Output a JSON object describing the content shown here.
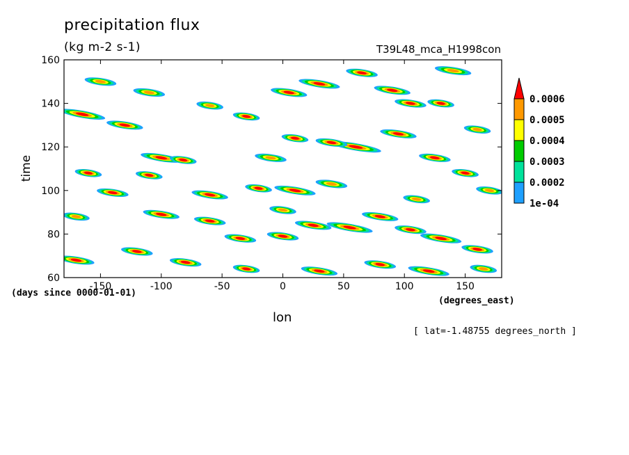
{
  "header": {
    "title": "precipitation flux",
    "units": "(kg m-2 s-1)",
    "run_name": "T39L48_mca_H1998con"
  },
  "footer": {
    "y_units": "(days since 0000-01-01)",
    "x_units": "(degrees_east)",
    "lat_note": "[ lat=-1.48755 degrees_north ]"
  },
  "chart_data": {
    "type": "heatmap",
    "title": "precipitation flux",
    "xlabel": "lon",
    "ylabel": "time",
    "xlim": [
      -180,
      180
    ],
    "ylim": [
      60,
      160
    ],
    "x_ticks": [
      -150,
      -100,
      -50,
      0,
      50,
      100,
      150
    ],
    "y_ticks": [
      60,
      80,
      100,
      120,
      140,
      160
    ],
    "grid": false,
    "colorbar": {
      "placement": "right",
      "levels": [
        0.0001,
        0.0002,
        0.0003,
        0.0004,
        0.0005,
        0.0006
      ],
      "labels": [
        "1e-04",
        "0.0002",
        "0.0003",
        "0.0004",
        "0.0005",
        "0.0006"
      ],
      "colors": [
        "#1ea0ff",
        "#00e29b",
        "#00cc00",
        "#ffff00",
        "#ff9900",
        "#ff0000"
      ]
    },
    "features": [
      {
        "lon": -165,
        "time": 135,
        "len": 18,
        "slope": -0.18,
        "peak": 0.0006
      },
      {
        "lon": -130,
        "time": 130,
        "len": 14,
        "slope": -0.15,
        "peak": 0.0006
      },
      {
        "lon": -100,
        "time": 115,
        "len": 16,
        "slope": -0.16,
        "peak": 0.0006
      },
      {
        "lon": -82,
        "time": 114,
        "len": 10,
        "slope": -0.14,
        "peak": 0.0006
      },
      {
        "lon": -110,
        "time": 107,
        "len": 10,
        "slope": -0.14,
        "peak": 0.0006
      },
      {
        "lon": -60,
        "time": 98,
        "len": 14,
        "slope": -0.15,
        "peak": 0.0006
      },
      {
        "lon": -20,
        "time": 101,
        "len": 10,
        "slope": -0.14,
        "peak": 0.0006
      },
      {
        "lon": 10,
        "time": 100,
        "len": 16,
        "slope": -0.16,
        "peak": 0.0006
      },
      {
        "lon": 40,
        "time": 103,
        "len": 12,
        "slope": -0.14,
        "peak": 0.0005
      },
      {
        "lon": 60,
        "time": 120,
        "len": 20,
        "slope": -0.17,
        "peak": 0.0006
      },
      {
        "lon": 40,
        "time": 122,
        "len": 12,
        "slope": -0.14,
        "peak": 0.0006
      },
      {
        "lon": 10,
        "time": 124,
        "len": 10,
        "slope": -0.14,
        "peak": 0.0006
      },
      {
        "lon": 5,
        "time": 145,
        "len": 14,
        "slope": -0.15,
        "peak": 0.0006
      },
      {
        "lon": 30,
        "time": 149,
        "len": 16,
        "slope": -0.16,
        "peak": 0.0006
      },
      {
        "lon": 65,
        "time": 154,
        "len": 12,
        "slope": -0.14,
        "peak": 0.0006
      },
      {
        "lon": 90,
        "time": 146,
        "len": 14,
        "slope": -0.15,
        "peak": 0.0006
      },
      {
        "lon": 105,
        "time": 140,
        "len": 12,
        "slope": -0.14,
        "peak": 0.0006
      },
      {
        "lon": 130,
        "time": 140,
        "len": 10,
        "slope": -0.14,
        "peak": 0.0006
      },
      {
        "lon": 95,
        "time": 126,
        "len": 14,
        "slope": -0.15,
        "peak": 0.0006
      },
      {
        "lon": 125,
        "time": 115,
        "len": 12,
        "slope": -0.14,
        "peak": 0.0006
      },
      {
        "lon": 150,
        "time": 108,
        "len": 10,
        "slope": -0.14,
        "peak": 0.0006
      },
      {
        "lon": 170,
        "time": 100,
        "len": 10,
        "slope": -0.14,
        "peak": 0.0005
      },
      {
        "lon": -160,
        "time": 108,
        "len": 10,
        "slope": -0.14,
        "peak": 0.0006
      },
      {
        "lon": -140,
        "time": 99,
        "len": 12,
        "slope": -0.14,
        "peak": 0.0006
      },
      {
        "lon": -100,
        "time": 89,
        "len": 14,
        "slope": -0.15,
        "peak": 0.0006
      },
      {
        "lon": -60,
        "time": 86,
        "len": 12,
        "slope": -0.14,
        "peak": 0.0006
      },
      {
        "lon": -35,
        "time": 78,
        "len": 12,
        "slope": -0.14,
        "peak": 0.0006
      },
      {
        "lon": 0,
        "time": 79,
        "len": 12,
        "slope": -0.14,
        "peak": 0.0006
      },
      {
        "lon": 25,
        "time": 84,
        "len": 14,
        "slope": -0.15,
        "peak": 0.0006
      },
      {
        "lon": 55,
        "time": 83,
        "len": 18,
        "slope": -0.17,
        "peak": 0.0006
      },
      {
        "lon": 80,
        "time": 88,
        "len": 14,
        "slope": -0.15,
        "peak": 0.0006
      },
      {
        "lon": 105,
        "time": 82,
        "len": 12,
        "slope": -0.14,
        "peak": 0.0006
      },
      {
        "lon": 130,
        "time": 78,
        "len": 16,
        "slope": -0.16,
        "peak": 0.0006
      },
      {
        "lon": 160,
        "time": 73,
        "len": 12,
        "slope": -0.14,
        "peak": 0.0006
      },
      {
        "lon": -170,
        "time": 68,
        "len": 14,
        "slope": -0.15,
        "peak": 0.0006
      },
      {
        "lon": -120,
        "time": 72,
        "len": 12,
        "slope": -0.14,
        "peak": 0.0006
      },
      {
        "lon": -80,
        "time": 67,
        "len": 12,
        "slope": -0.14,
        "peak": 0.0006
      },
      {
        "lon": -30,
        "time": 64,
        "len": 10,
        "slope": -0.14,
        "peak": 0.0006
      },
      {
        "lon": 30,
        "time": 63,
        "len": 14,
        "slope": -0.15,
        "peak": 0.0006
      },
      {
        "lon": 80,
        "time": 66,
        "len": 12,
        "slope": -0.14,
        "peak": 0.0006
      },
      {
        "lon": 120,
        "time": 63,
        "len": 16,
        "slope": -0.16,
        "peak": 0.0006
      },
      {
        "lon": 165,
        "time": 64,
        "len": 10,
        "slope": -0.14,
        "peak": 0.0005
      },
      {
        "lon": -150,
        "time": 150,
        "len": 12,
        "slope": -0.14,
        "peak": 0.0005
      },
      {
        "lon": -110,
        "time": 145,
        "len": 12,
        "slope": -0.14,
        "peak": 0.0005
      },
      {
        "lon": -60,
        "time": 139,
        "len": 10,
        "slope": -0.14,
        "peak": 0.0005
      },
      {
        "lon": -30,
        "time": 134,
        "len": 10,
        "slope": -0.14,
        "peak": 0.0006
      },
      {
        "lon": -10,
        "time": 115,
        "len": 12,
        "slope": -0.14,
        "peak": 0.0005
      },
      {
        "lon": 140,
        "time": 155,
        "len": 14,
        "slope": -0.15,
        "peak": 0.0005
      },
      {
        "lon": 160,
        "time": 128,
        "len": 10,
        "slope": -0.14,
        "peak": 0.0005
      },
      {
        "lon": -170,
        "time": 88,
        "len": 10,
        "slope": -0.14,
        "peak": 0.0005
      },
      {
        "lon": 0,
        "time": 91,
        "len": 10,
        "slope": -0.14,
        "peak": 0.0005
      },
      {
        "lon": 110,
        "time": 96,
        "len": 10,
        "slope": -0.14,
        "peak": 0.0005
      }
    ]
  }
}
